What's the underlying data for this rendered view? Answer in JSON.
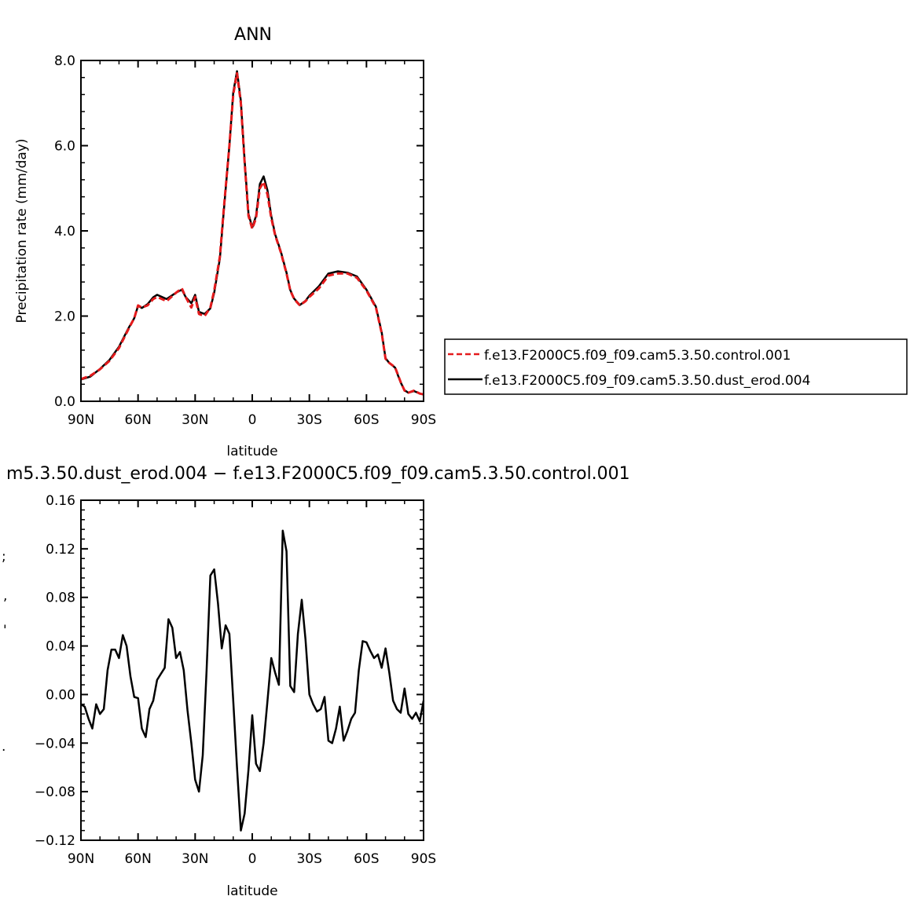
{
  "colors": {
    "control": "#e41a1c",
    "dust": "#000000"
  },
  "chart_data": [
    {
      "type": "line",
      "title": "ANN",
      "xlabel": "latitude",
      "ylabel": "Precipitation rate (mm/day)",
      "xlim": [
        90,
        -90
      ],
      "ylim": [
        0,
        8
      ],
      "xticks": [
        90,
        60,
        30,
        0,
        -30,
        -60,
        -90
      ],
      "xtick_labels": [
        "90N",
        "60N",
        "30N",
        "0",
        "30S",
        "60S",
        "90S"
      ],
      "yticks": [
        0,
        2,
        4,
        6,
        8
      ],
      "ytick_labels": [
        "0.0",
        "2.0",
        "4.0",
        "6.0",
        "8.0"
      ],
      "legend": "outside-right",
      "series": [
        {
          "name": "f.e13.F2000C5.f09_f09.cam5.3.50.control.001",
          "style": "dashed",
          "x": [
            90,
            85,
            80,
            75,
            70,
            65,
            62,
            60,
            58,
            55,
            52,
            50,
            45,
            40,
            37,
            35,
            32,
            30,
            28,
            25,
            22,
            20,
            17,
            15,
            12,
            10,
            8,
            6,
            4,
            2,
            0,
            -2,
            -4,
            -6,
            -8,
            -10,
            -12,
            -15,
            -18,
            -20,
            -22,
            -25,
            -28,
            -30,
            -35,
            -40,
            -45,
            -50,
            -55,
            -60,
            -65,
            -68,
            -70,
            -72,
            -75,
            -78,
            -80,
            -82,
            -85,
            -88,
            -90
          ],
          "y": [
            0.52,
            0.6,
            0.75,
            0.95,
            1.25,
            1.7,
            1.95,
            2.25,
            2.2,
            2.25,
            2.4,
            2.45,
            2.35,
            2.55,
            2.65,
            2.45,
            2.2,
            2.45,
            2.05,
            2.0,
            2.2,
            2.6,
            3.4,
            4.5,
            6.0,
            7.2,
            7.7,
            7.0,
            5.6,
            4.35,
            4.05,
            4.3,
            5.0,
            5.15,
            4.85,
            4.3,
            3.9,
            3.5,
            3.0,
            2.6,
            2.4,
            2.25,
            2.35,
            2.45,
            2.65,
            2.95,
            3.0,
            3.0,
            2.9,
            2.6,
            2.2,
            1.6,
            1.0,
            0.9,
            0.8,
            0.45,
            0.25,
            0.2,
            0.25,
            0.18,
            0.16
          ]
        },
        {
          "name": "f.e13.F2000C5.f09_f09.cam5.3.50.dust_erod.004",
          "style": "solid",
          "x": [
            90,
            85,
            80,
            75,
            70,
            65,
            62,
            60,
            58,
            55,
            52,
            50,
            45,
            40,
            37,
            35,
            32,
            30,
            28,
            25,
            22,
            20,
            17,
            15,
            12,
            10,
            8,
            6,
            4,
            2,
            0,
            -2,
            -4,
            -6,
            -8,
            -10,
            -12,
            -15,
            -18,
            -20,
            -22,
            -25,
            -28,
            -30,
            -35,
            -40,
            -45,
            -50,
            -55,
            -60,
            -65,
            -68,
            -70,
            -72,
            -75,
            -78,
            -80,
            -82,
            -85,
            -88,
            -90
          ],
          "y": [
            0.51,
            0.58,
            0.76,
            0.97,
            1.28,
            1.72,
            1.95,
            2.24,
            2.19,
            2.28,
            2.44,
            2.5,
            2.4,
            2.55,
            2.62,
            2.45,
            2.3,
            2.5,
            2.1,
            2.05,
            2.18,
            2.55,
            3.35,
            4.45,
            6.0,
            7.25,
            7.75,
            7.05,
            5.65,
            4.4,
            4.08,
            4.35,
            5.1,
            5.28,
            4.95,
            4.35,
            3.92,
            3.52,
            3.02,
            2.61,
            2.41,
            2.26,
            2.36,
            2.48,
            2.7,
            3.0,
            3.05,
            3.02,
            2.93,
            2.62,
            2.22,
            1.62,
            1.01,
            0.9,
            0.79,
            0.44,
            0.26,
            0.2,
            0.24,
            0.18,
            0.16
          ]
        }
      ]
    },
    {
      "type": "line",
      "title": "m5.3.50.dust_erod.004 − f.e13.F2000C5.f09_f09.cam5.3.50.control.001",
      "xlabel": "latitude",
      "ylabel": "",
      "ylabel_fragments": [
        ";",
        ",",
        "'",
        "."
      ],
      "xlim": [
        90,
        -90
      ],
      "ylim": [
        -0.12,
        0.16
      ],
      "xticks": [
        90,
        60,
        30,
        0,
        -30,
        -60,
        -90
      ],
      "xtick_labels": [
        "90N",
        "60N",
        "30N",
        "0",
        "30S",
        "60S",
        "90S"
      ],
      "yticks": [
        -0.12,
        -0.08,
        -0.04,
        0.0,
        0.04,
        0.08,
        0.12,
        0.16
      ],
      "ytick_labels": [
        "−0.12",
        "−0.08",
        "−0.04",
        "0.00",
        "0.04",
        "0.08",
        "0.12",
        "0.16"
      ],
      "series": [
        {
          "name": "",
          "style": "solid",
          "x": [
            90,
            88,
            86,
            84,
            82,
            80,
            78,
            76,
            74,
            72,
            70,
            68,
            66,
            64,
            62,
            60,
            58,
            56,
            54,
            52,
            50,
            48,
            46,
            44,
            42,
            40,
            38,
            36,
            34,
            32,
            30,
            28,
            26,
            24,
            22,
            20,
            18,
            16,
            14,
            12,
            10,
            8,
            6,
            4,
            2,
            0,
            -2,
            -4,
            -6,
            -8,
            -10,
            -12,
            -14,
            -16,
            -18,
            -20,
            -22,
            -24,
            -26,
            -28,
            -30,
            -32,
            -34,
            -36,
            -38,
            -40,
            -42,
            -44,
            -46,
            -48,
            -50,
            -52,
            -54,
            -56,
            -58,
            -60,
            -62,
            -64,
            -66,
            -68,
            -70,
            -72,
            -74,
            -76,
            -78,
            -80,
            -82,
            -84,
            -86,
            -88,
            -90
          ],
          "y": [
            -0.008,
            -0.01,
            -0.02,
            -0.028,
            -0.008,
            -0.016,
            -0.012,
            0.02,
            0.037,
            0.037,
            0.03,
            0.049,
            0.04,
            0.015,
            -0.002,
            -0.003,
            -0.028,
            -0.035,
            -0.012,
            -0.005,
            0.012,
            0.017,
            0.022,
            0.062,
            0.055,
            0.03,
            0.035,
            0.02,
            -0.013,
            -0.04,
            -0.07,
            -0.08,
            -0.05,
            0.02,
            0.098,
            0.103,
            0.075,
            0.038,
            0.057,
            0.05,
            -0.005,
            -0.06,
            -0.112,
            -0.098,
            -0.062,
            -0.017,
            -0.057,
            -0.063,
            -0.04,
            -0.005,
            0.03,
            0.018,
            0.008,
            0.135,
            0.118,
            0.007,
            0.002,
            0.05,
            0.078,
            0.045,
            0.0,
            -0.008,
            -0.014,
            -0.012,
            -0.002,
            -0.038,
            -0.04,
            -0.028,
            -0.01,
            -0.038,
            -0.03,
            -0.02,
            -0.015,
            0.02,
            0.044,
            0.043,
            0.036,
            0.03,
            0.033,
            0.022,
            0.038,
            0.018,
            -0.005,
            -0.012,
            -0.015,
            0.005,
            -0.016,
            -0.02,
            -0.015,
            -0.022,
            -0.005
          ]
        }
      ]
    }
  ]
}
